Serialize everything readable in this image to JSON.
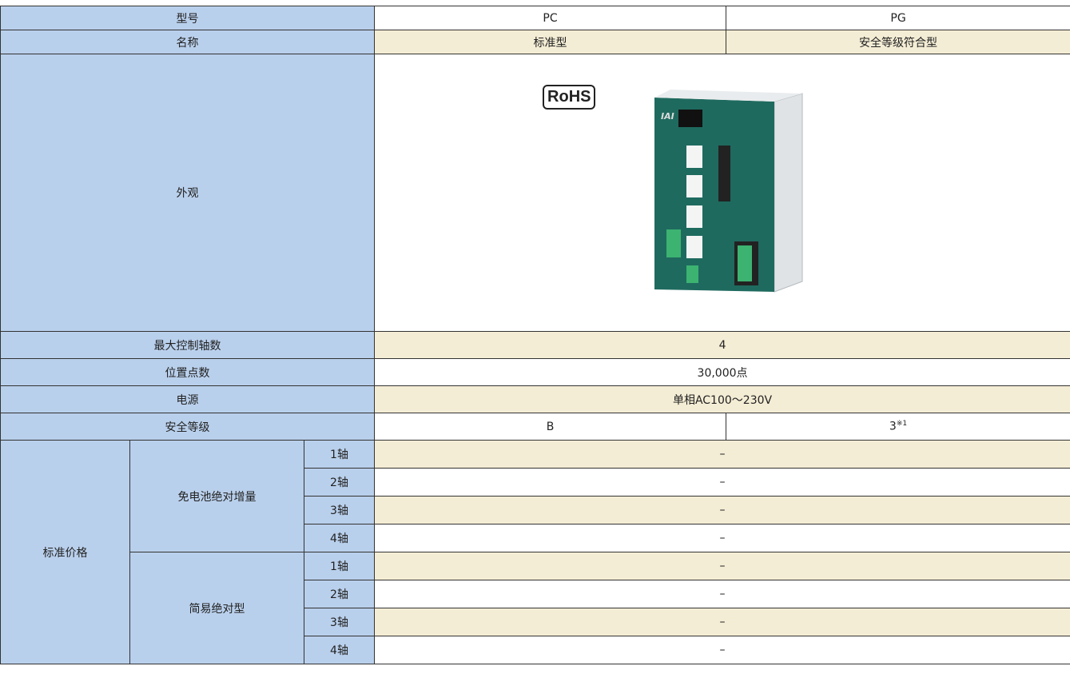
{
  "table": {
    "rows": [
      {
        "label": "型号",
        "cells": [
          "PC",
          "PG"
        ]
      },
      {
        "label": "名称",
        "cells": [
          "标准型",
          "安全等级符合型"
        ]
      },
      {
        "label": "外观",
        "badge": "RoHS"
      },
      {
        "label": "最大控制轴数",
        "cells": [
          "4"
        ]
      },
      {
        "label": "位置点数",
        "cells": [
          "30,000点"
        ]
      },
      {
        "label": "电源",
        "cells": [
          "单相AC100～230V"
        ]
      },
      {
        "label": "安全等级",
        "cells": [
          "B",
          "3"
        ],
        "note": "※1"
      }
    ],
    "price": {
      "label": "标准价格",
      "groups": [
        {
          "label": "免电池绝对增量",
          "rows": [
            {
              "axis": "1轴",
              "value": "–"
            },
            {
              "axis": "2轴",
              "value": "–"
            },
            {
              "axis": "3轴",
              "value": "–"
            },
            {
              "axis": "4轴",
              "value": "–"
            }
          ]
        },
        {
          "label": "简易绝对型",
          "rows": [
            {
              "axis": "1轴",
              "value": "–"
            },
            {
              "axis": "2轴",
              "value": "–"
            },
            {
              "axis": "3轴",
              "value": "–"
            },
            {
              "axis": "4轴",
              "value": "–"
            }
          ]
        }
      ]
    }
  }
}
